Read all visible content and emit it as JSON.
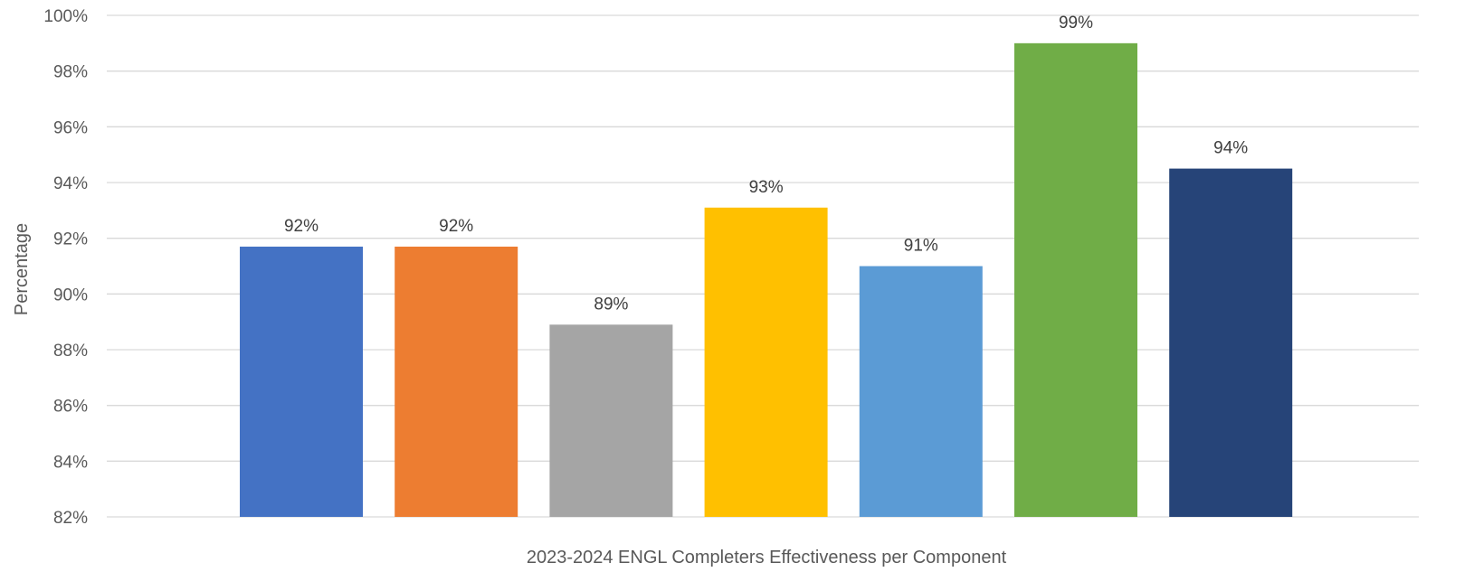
{
  "chart_data": {
    "type": "bar",
    "title": "",
    "xlabel": "2023-2024 ENGL Completers Effectiveness per Component",
    "ylabel": "Percentage",
    "ylim": [
      82,
      100
    ],
    "yticks": [
      "82%",
      "84%",
      "86%",
      "88%",
      "90%",
      "92%",
      "94%",
      "96%",
      "98%",
      "100%"
    ],
    "grid": true,
    "legend": "none",
    "values": [
      91.7,
      91.7,
      88.9,
      93.1,
      91.0,
      99.0,
      94.5
    ],
    "data_labels": [
      "92%",
      "92%",
      "89%",
      "93%",
      "91%",
      "99%",
      "94%"
    ],
    "colors": [
      "#4472c4",
      "#ed7d31",
      "#a5a5a5",
      "#ffc000",
      "#5b9bd5",
      "#70ad47",
      "#264478"
    ]
  }
}
